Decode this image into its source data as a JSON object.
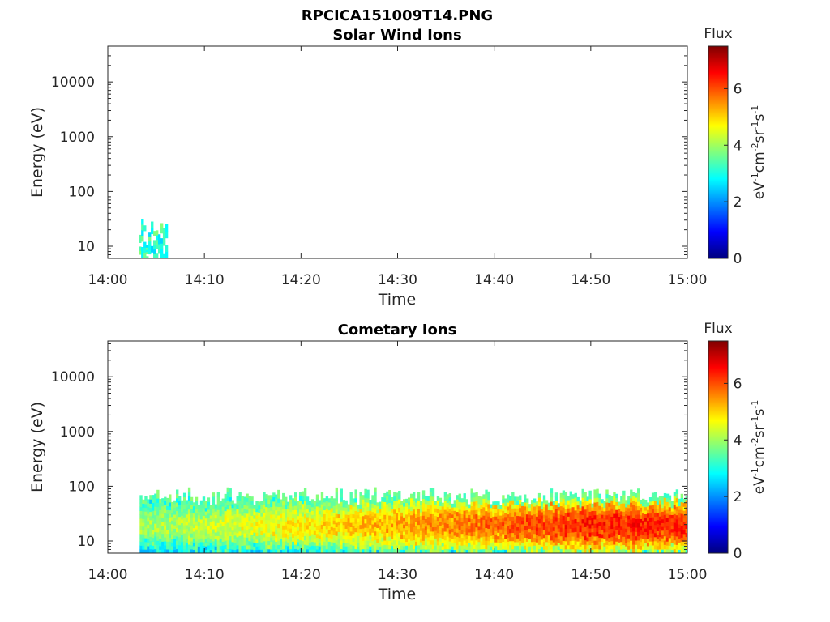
{
  "figure": {
    "file_title": "RPCICA151009T14.PNG"
  },
  "chart_data": [
    {
      "type": "heatmap",
      "title": "Solar Wind Ions",
      "xlabel": "Time",
      "ylabel": "Energy (eV)",
      "x_ticks": [
        "14:00",
        "14:10",
        "14:20",
        "14:30",
        "14:40",
        "14:50",
        "15:00"
      ],
      "y_ticks": [
        "10",
        "100",
        "1000",
        "10000"
      ],
      "xlim": [
        "14:00",
        "15:00"
      ],
      "ylim": [
        6,
        45000
      ],
      "yscale": "log",
      "colorbar": {
        "label": "Flux",
        "unit_label": "eV-1cm-2sr-1s-1",
        "ticks": [
          "0",
          "2",
          "4",
          "6"
        ],
        "range": [
          0,
          7.5
        ],
        "colormap": "jet"
      },
      "signal_regions": [
        {
          "t_start_min": 3.2,
          "t_end_min": 6.2,
          "e_low": 6,
          "e_high": 40,
          "flux_min": 2.5,
          "flux_max": 3.8
        }
      ]
    },
    {
      "type": "heatmap",
      "title": "Cometary Ions",
      "xlabel": "Time",
      "ylabel": "Energy (eV)",
      "x_ticks": [
        "14:00",
        "14:10",
        "14:20",
        "14:30",
        "14:40",
        "14:50",
        "15:00"
      ],
      "y_ticks": [
        "10",
        "100",
        "1000",
        "10000"
      ],
      "xlim": [
        "14:00",
        "15:00"
      ],
      "ylim": [
        6,
        45000
      ],
      "yscale": "log",
      "colorbar": {
        "label": "Flux",
        "unit_label": "eV-1cm-2sr-1s-1",
        "ticks": [
          "0",
          "2",
          "4",
          "6"
        ],
        "range": [
          0,
          7.5
        ],
        "colormap": "jet"
      },
      "signal_regions": [
        {
          "t_start_min": 3.3,
          "t_end_min": 60.0,
          "e_low": 6,
          "e_high": 80,
          "peak_energy_ev": 18,
          "flux_max": 6.8
        }
      ]
    }
  ]
}
